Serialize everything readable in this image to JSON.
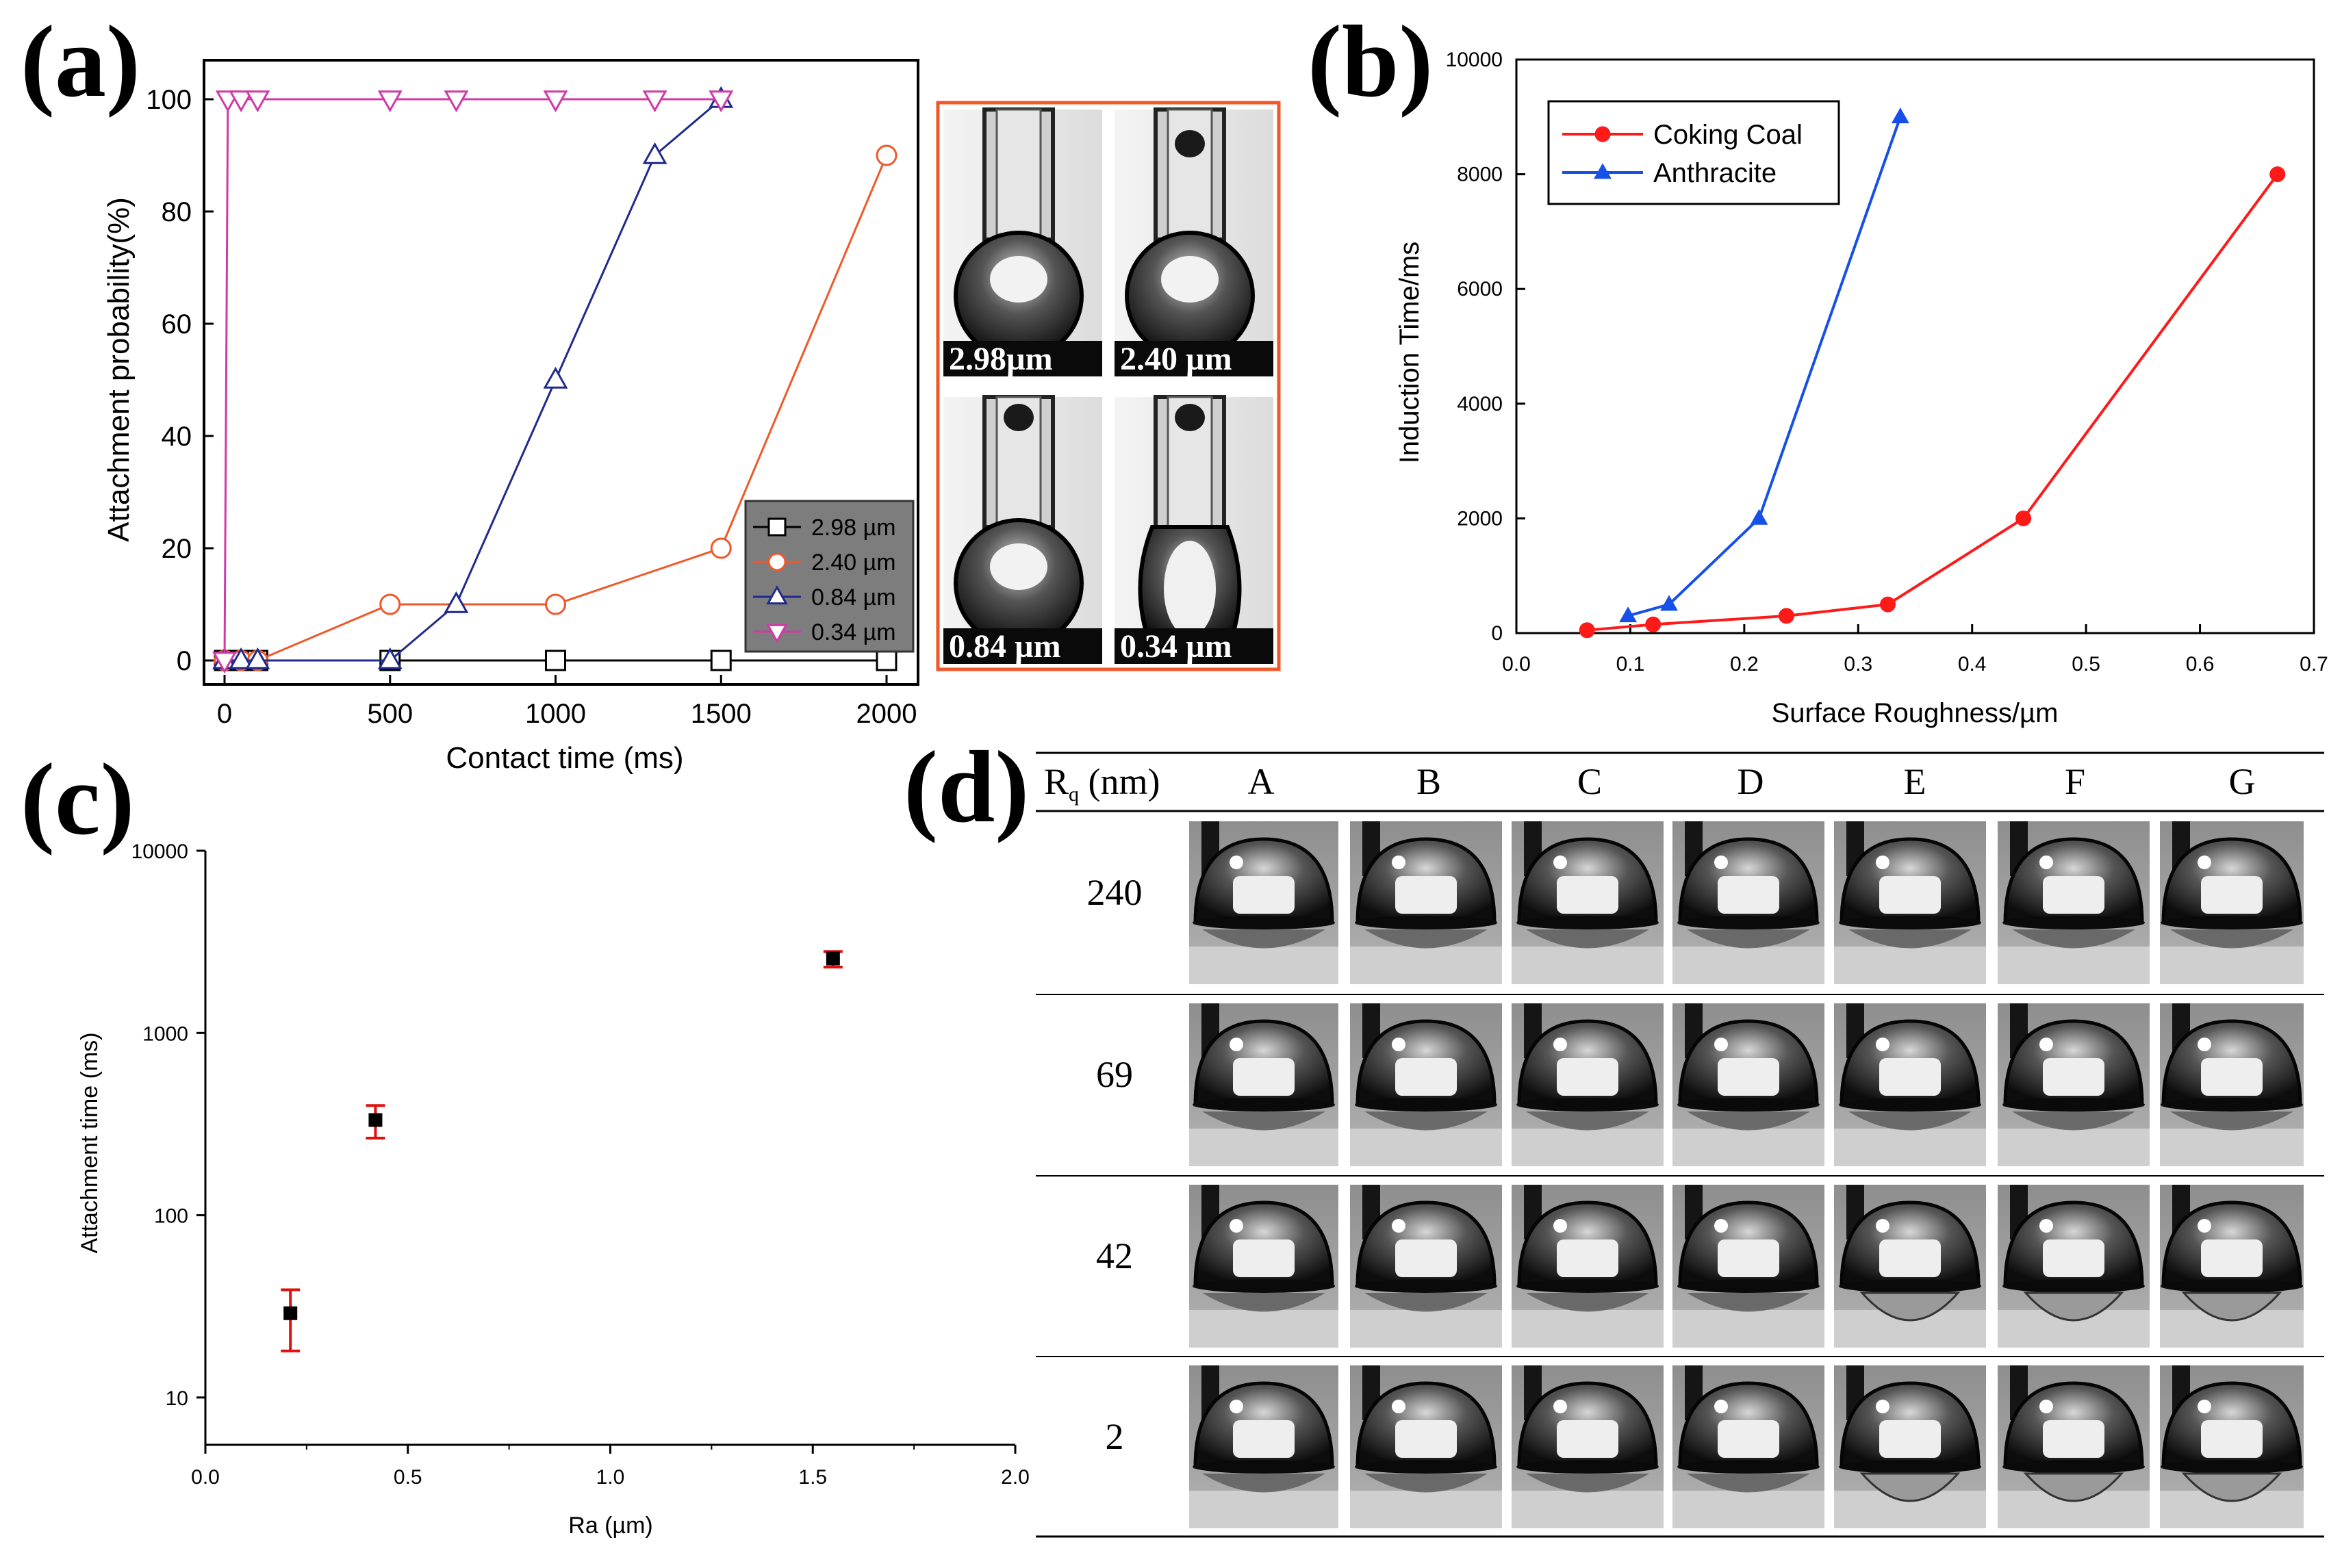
{
  "chart_data": [
    {
      "panel": "(a)",
      "type": "line",
      "xlabel": "Contact time (ms)",
      "ylabel": "Attachment probability(%)",
      "xlim": [
        -50,
        2100
      ],
      "ylim": [
        -5,
        105
      ],
      "xticks": [
        "0",
        "500",
        "1000",
        "1500",
        "2000"
      ],
      "yticks": [
        "0",
        "20",
        "40",
        "60",
        "80",
        "100"
      ],
      "legend_position": "bottom-right",
      "series": [
        {
          "name": "2.98 µm",
          "marker": "square",
          "color": "#000000",
          "x": [
            0,
            50,
            100,
            500,
            1000,
            1500,
            2000
          ],
          "y": [
            0,
            0,
            0,
            0,
            0,
            0,
            0
          ]
        },
        {
          "name": "2.40 µm",
          "marker": "circle",
          "color": "#f0582a",
          "x": [
            0,
            50,
            100,
            500,
            1000,
            1500,
            2000
          ],
          "y": [
            0,
            0,
            0,
            10,
            10,
            20,
            90
          ]
        },
        {
          "name": "0.84 µm",
          "marker": "triangle-up",
          "color": "#1f2a8c",
          "x": [
            0,
            50,
            100,
            500,
            700,
            1000,
            1300,
            1500
          ],
          "y": [
            0,
            0,
            0,
            0,
            10,
            50,
            90,
            100
          ]
        },
        {
          "name": "0.34 µm",
          "marker": "triangle-down",
          "color": "#d13aa6",
          "x": [
            0,
            10,
            50,
            100,
            500,
            700,
            1000,
            1300,
            1500
          ],
          "y": [
            0,
            100,
            100,
            100,
            100,
            100,
            100,
            100,
            100
          ]
        }
      ],
      "inset_images": [
        "2.98µm",
        "2.40  µm",
        "0.84  µm",
        "0.34  µm"
      ]
    },
    {
      "panel": "(b)",
      "type": "line",
      "xlabel": "Surface Roughness/µm",
      "ylabel": "Induction Time/ms",
      "xlim": [
        0,
        0.7
      ],
      "ylim": [
        0,
        10000
      ],
      "xticks": [
        "0.0",
        "0.1",
        "0.2",
        "0.3",
        "0.4",
        "0.5",
        "0.6",
        "0.7"
      ],
      "yticks": [
        "0",
        "2000",
        "4000",
        "6000",
        "8000",
        "10000"
      ],
      "legend_position": "top-left",
      "series": [
        {
          "name": "Coking Coal",
          "marker": "circle",
          "color": "#ff1a1a",
          "x": [
            0.062,
            0.12,
            0.237,
            0.326,
            0.445,
            0.668
          ],
          "y": [
            50,
            150,
            300,
            500,
            2000,
            8000
          ]
        },
        {
          "name": "Anthracite",
          "marker": "triangle-up",
          "color": "#1750e8",
          "x": [
            0.098,
            0.134,
            0.213,
            0.337
          ],
          "y": [
            300,
            500,
            2000,
            9000
          ]
        }
      ]
    },
    {
      "panel": "(c)",
      "type": "scatter",
      "xlabel": "Ra (µm)",
      "ylabel": "Attachment time (ms)",
      "yscale": "log",
      "xlim": [
        0,
        2.0
      ],
      "ylim": [
        5.5,
        10000
      ],
      "xticks": [
        "0.0",
        "0.5",
        "1.0",
        "1.5",
        "2.0"
      ],
      "yticks": [
        "10",
        "100",
        "1000",
        "10000"
      ],
      "points": [
        {
          "x": 0.21,
          "y": 29,
          "err_low": 18,
          "err_high": 39
        },
        {
          "x": 0.42,
          "y": 333,
          "err_low": 265,
          "err_high": 400
        },
        {
          "x": 1.55,
          "y": 2560,
          "err_low": 2300,
          "err_high": 2800
        }
      ]
    },
    {
      "panel": "(d)",
      "type": "table",
      "header": [
        "R",
        "q",
        " (nm)"
      ],
      "columns": [
        "A",
        "B",
        "C",
        "D",
        "E",
        "F",
        "G"
      ],
      "rows": [
        "240",
        "69",
        "42",
        "2"
      ]
    }
  ]
}
